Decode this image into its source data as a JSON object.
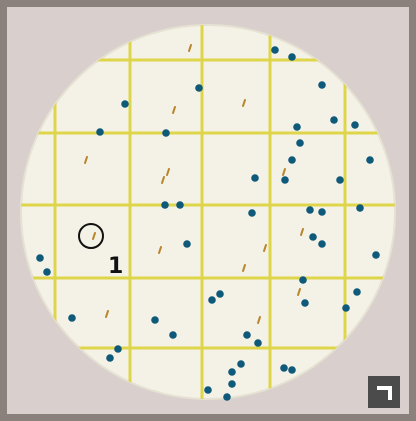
{
  "image": {
    "label": "1"
  }
}
